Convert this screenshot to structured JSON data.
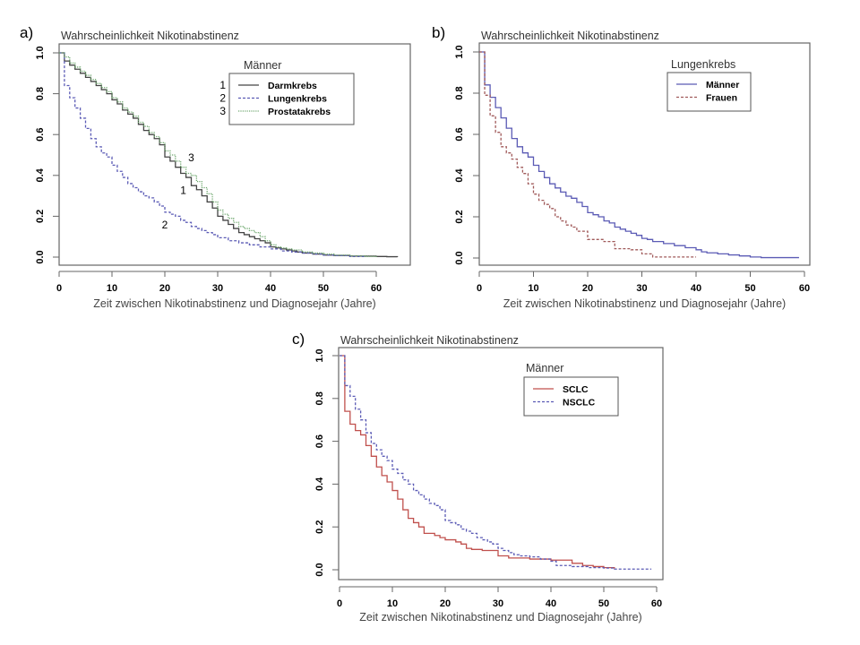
{
  "chart_data": [
    {
      "type": "line",
      "panel": "a)",
      "title": "Wahrscheinlichkeit Nikotinabstinenz",
      "xlabel": "Zeit zwischen Nikotinabstinenz und Diagnosejahr (Jahre)",
      "ylabel": "Wahrscheinlichkeit Nikotinabstinenz",
      "xlim": [
        0,
        64
      ],
      "ylim": [
        0,
        1
      ],
      "xticks": [
        0,
        10,
        20,
        30,
        40,
        50,
        60
      ],
      "yticks": [
        "0.0",
        "0.2",
        "0.4",
        "0.6",
        "0.8",
        "1.0"
      ],
      "legend": {
        "title": "Männer",
        "placement": "top-right"
      },
      "annotations": [
        {
          "text": "3",
          "x": 25,
          "y": 0.47
        },
        {
          "text": "1",
          "x": 23.5,
          "y": 0.31
        },
        {
          "text": "2",
          "x": 20,
          "y": 0.14
        }
      ],
      "series": [
        {
          "name": "Darmkrebs",
          "number": "1",
          "color": "#444444",
          "dash": "solid",
          "x": [
            0,
            1,
            2,
            3,
            4,
            5,
            6,
            7,
            8,
            9,
            10,
            11,
            12,
            13,
            14,
            15,
            16,
            17,
            18,
            19,
            20,
            21,
            22,
            23,
            24,
            25,
            26,
            27,
            28,
            29,
            30,
            31,
            32,
            33,
            34,
            35,
            36,
            37,
            38,
            39,
            40,
            41,
            42,
            43,
            44,
            45,
            46,
            48,
            50,
            52,
            55,
            60,
            62,
            64
          ],
          "y": [
            1.0,
            0.96,
            0.94,
            0.92,
            0.9,
            0.88,
            0.86,
            0.84,
            0.82,
            0.8,
            0.77,
            0.75,
            0.72,
            0.7,
            0.68,
            0.65,
            0.62,
            0.6,
            0.58,
            0.55,
            0.49,
            0.47,
            0.44,
            0.41,
            0.39,
            0.35,
            0.33,
            0.3,
            0.27,
            0.24,
            0.2,
            0.18,
            0.16,
            0.14,
            0.12,
            0.11,
            0.1,
            0.09,
            0.08,
            0.07,
            0.05,
            0.045,
            0.04,
            0.035,
            0.03,
            0.025,
            0.02,
            0.015,
            0.01,
            0.008,
            0.005,
            0.003,
            0.002,
            0.0
          ]
        },
        {
          "name": "Lungenkrebs",
          "number": "2",
          "color": "#5b5bb5",
          "dash": "dashed",
          "x": [
            0,
            1,
            2,
            3,
            4,
            5,
            6,
            7,
            8,
            9,
            10,
            11,
            12,
            13,
            14,
            15,
            16,
            17,
            18,
            19,
            20,
            21,
            22,
            23,
            24,
            25,
            26,
            27,
            28,
            29,
            30,
            32,
            34,
            36,
            38,
            40,
            42,
            44,
            46,
            48,
            50,
            52,
            55,
            58
          ],
          "y": [
            1.0,
            0.84,
            0.78,
            0.73,
            0.68,
            0.63,
            0.58,
            0.54,
            0.51,
            0.49,
            0.45,
            0.42,
            0.39,
            0.36,
            0.34,
            0.32,
            0.3,
            0.29,
            0.27,
            0.25,
            0.22,
            0.21,
            0.2,
            0.18,
            0.17,
            0.15,
            0.14,
            0.13,
            0.12,
            0.11,
            0.095,
            0.08,
            0.07,
            0.06,
            0.05,
            0.04,
            0.03,
            0.025,
            0.02,
            0.015,
            0.01,
            0.007,
            0.003,
            0.0
          ]
        },
        {
          "name": "Prostatakrebs",
          "number": "3",
          "color": "#6fa86f",
          "dash": "dotted",
          "x": [
            0,
            1,
            2,
            3,
            4,
            5,
            6,
            7,
            8,
            9,
            10,
            11,
            12,
            13,
            14,
            15,
            16,
            17,
            18,
            19,
            20,
            21,
            22,
            23,
            24,
            25,
            26,
            27,
            28,
            29,
            30,
            31,
            32,
            33,
            34,
            35,
            36,
            37,
            38,
            39,
            40,
            41,
            42,
            43,
            44,
            46,
            48,
            50,
            52,
            55,
            58,
            60
          ],
          "y": [
            1.0,
            0.98,
            0.95,
            0.93,
            0.91,
            0.89,
            0.87,
            0.85,
            0.83,
            0.81,
            0.78,
            0.76,
            0.73,
            0.71,
            0.69,
            0.66,
            0.64,
            0.61,
            0.59,
            0.56,
            0.52,
            0.5,
            0.47,
            0.44,
            0.41,
            0.4,
            0.37,
            0.34,
            0.31,
            0.27,
            0.23,
            0.21,
            0.19,
            0.17,
            0.15,
            0.14,
            0.13,
            0.12,
            0.1,
            0.08,
            0.06,
            0.05,
            0.045,
            0.04,
            0.035,
            0.025,
            0.02,
            0.015,
            0.01,
            0.006,
            0.003,
            0.0
          ]
        }
      ]
    },
    {
      "type": "line",
      "panel": "b)",
      "title": "Wahrscheinlichkeit Nikotinabstinenz",
      "xlabel": "Zeit zwischen Nikotinabstinenz und Diagnosejahr (Jahre)",
      "ylabel": "Wahrscheinlichkeit Nikotinabstinenz",
      "xlim": [
        0,
        60
      ],
      "ylim": [
        0,
        1
      ],
      "xticks": [
        0,
        10,
        20,
        30,
        40,
        50,
        60
      ],
      "yticks": [
        "0.0",
        "0.2",
        "0.4",
        "0.6",
        "0.8",
        "1.0"
      ],
      "legend": {
        "title": "Lungenkrebs",
        "placement": "top-right"
      },
      "series": [
        {
          "name": "Männer",
          "color": "#5b5bb5",
          "dash": "solid",
          "x": [
            0,
            1,
            2,
            3,
            4,
            5,
            6,
            7,
            8,
            9,
            10,
            11,
            12,
            13,
            14,
            15,
            16,
            17,
            18,
            19,
            20,
            21,
            22,
            23,
            24,
            25,
            26,
            27,
            28,
            29,
            30,
            31,
            32,
            34,
            36,
            38,
            40,
            41,
            42,
            44,
            46,
            48,
            50,
            52,
            59
          ],
          "y": [
            1.0,
            0.84,
            0.78,
            0.73,
            0.68,
            0.63,
            0.58,
            0.54,
            0.51,
            0.49,
            0.45,
            0.42,
            0.39,
            0.36,
            0.34,
            0.32,
            0.3,
            0.29,
            0.27,
            0.25,
            0.22,
            0.21,
            0.2,
            0.18,
            0.17,
            0.15,
            0.14,
            0.13,
            0.12,
            0.11,
            0.095,
            0.09,
            0.08,
            0.07,
            0.06,
            0.05,
            0.04,
            0.03,
            0.025,
            0.02,
            0.015,
            0.01,
            0.005,
            0.002,
            0.002
          ]
        },
        {
          "name": "Frauen",
          "color": "#a05a5a",
          "dash": "dashed",
          "x": [
            0,
            1,
            2,
            3,
            4,
            5,
            6,
            7,
            8,
            9,
            10,
            11,
            12,
            13,
            14,
            15,
            16,
            17,
            18,
            20,
            23,
            25,
            28,
            30,
            32,
            40
          ],
          "y": [
            1.0,
            0.79,
            0.69,
            0.61,
            0.54,
            0.51,
            0.48,
            0.44,
            0.41,
            0.36,
            0.31,
            0.28,
            0.26,
            0.24,
            0.2,
            0.18,
            0.16,
            0.15,
            0.13,
            0.09,
            0.08,
            0.045,
            0.04,
            0.02,
            0.005,
            0.005
          ]
        }
      ]
    },
    {
      "type": "line",
      "panel": "c)",
      "title": "Wahrscheinlichkeit Nikotinabstinenz",
      "xlabel": "Zeit zwischen Nikotinabstinenz und Diagnosejahr (Jahre)",
      "ylabel": "Wahrscheinlichkeit Nikotinabstinenz",
      "xlim": [
        0,
        60
      ],
      "ylim": [
        0,
        1
      ],
      "xticks": [
        0,
        10,
        20,
        30,
        40,
        50,
        60
      ],
      "yticks": [
        "0.0",
        "0.2",
        "0.4",
        "0.6",
        "0.8",
        "1.0"
      ],
      "legend": {
        "title": "Männer",
        "placement": "top-right"
      },
      "series": [
        {
          "name": "SCLC",
          "color": "#c0504d",
          "dash": "solid",
          "x": [
            0,
            1,
            2,
            3,
            4,
            5,
            6,
            7,
            8,
            9,
            10,
            11,
            12,
            13,
            14,
            15,
            16,
            18,
            19,
            20,
            22,
            23,
            24,
            25,
            27,
            30,
            32,
            36,
            40,
            44,
            46,
            48,
            50,
            52
          ],
          "y": [
            1.0,
            0.74,
            0.68,
            0.65,
            0.63,
            0.58,
            0.53,
            0.48,
            0.44,
            0.41,
            0.37,
            0.33,
            0.28,
            0.24,
            0.22,
            0.2,
            0.17,
            0.16,
            0.15,
            0.14,
            0.13,
            0.12,
            0.1,
            0.095,
            0.09,
            0.065,
            0.055,
            0.05,
            0.045,
            0.03,
            0.02,
            0.015,
            0.01,
            0.005
          ]
        },
        {
          "name": "NSCLC",
          "color": "#5b5bb5",
          "dash": "dashed",
          "x": [
            0,
            1,
            2,
            3,
            4,
            5,
            6,
            7,
            8,
            9,
            10,
            11,
            12,
            13,
            14,
            15,
            16,
            17,
            18,
            19,
            20,
            21,
            22,
            23,
            24,
            25,
            26,
            27,
            28,
            29,
            30,
            31,
            32,
            33,
            34,
            36,
            38,
            40,
            41,
            44,
            47,
            50,
            52,
            59
          ],
          "y": [
            1.0,
            0.86,
            0.81,
            0.75,
            0.7,
            0.64,
            0.59,
            0.56,
            0.53,
            0.51,
            0.47,
            0.45,
            0.42,
            0.4,
            0.37,
            0.35,
            0.33,
            0.31,
            0.3,
            0.28,
            0.23,
            0.22,
            0.21,
            0.19,
            0.18,
            0.17,
            0.15,
            0.14,
            0.13,
            0.12,
            0.1,
            0.09,
            0.08,
            0.07,
            0.065,
            0.06,
            0.05,
            0.04,
            0.02,
            0.015,
            0.01,
            0.008,
            0.003,
            0.003
          ]
        }
      ]
    }
  ]
}
